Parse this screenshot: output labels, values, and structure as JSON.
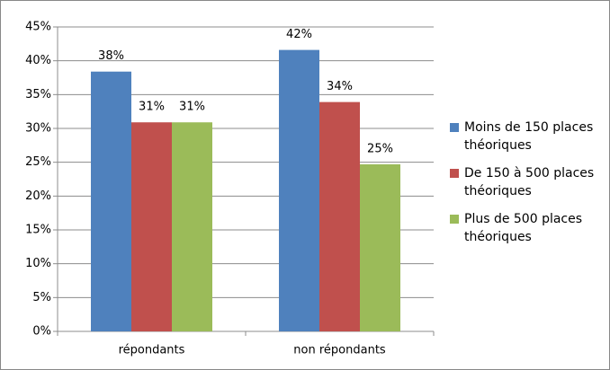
{
  "chart_data": {
    "type": "bar",
    "categories": [
      "répondants",
      "non répondants"
    ],
    "series": [
      {
        "name": "Moins de 150 places théoriques",
        "color": "#4f81bd",
        "values": [
          38.4,
          41.6
        ],
        "value_labels": [
          "38%",
          "42%"
        ]
      },
      {
        "name": "De 150 à 500 places théoriques",
        "color": "#c0504d",
        "values": [
          30.9,
          33.9
        ],
        "value_labels": [
          "31%",
          "34%"
        ]
      },
      {
        "name": "Plus de 500 places théoriques",
        "color": "#9bbb59",
        "values": [
          30.9,
          24.7
        ],
        "value_labels": [
          "31%",
          "25%"
        ]
      }
    ],
    "ylim": [
      0,
      45
    ],
    "yticks": [
      {
        "value": 0,
        "label": "0%"
      },
      {
        "value": 5,
        "label": "5%"
      },
      {
        "value": 10,
        "label": "10%"
      },
      {
        "value": 15,
        "label": "15%"
      },
      {
        "value": 20,
        "label": "20%"
      },
      {
        "value": 25,
        "label": "25%"
      },
      {
        "value": 30,
        "label": "30%"
      },
      {
        "value": 35,
        "label": "35%"
      },
      {
        "value": 40,
        "label": "40%"
      },
      {
        "value": 45,
        "label": "45%"
      }
    ],
    "grid": true,
    "legend": "right"
  }
}
